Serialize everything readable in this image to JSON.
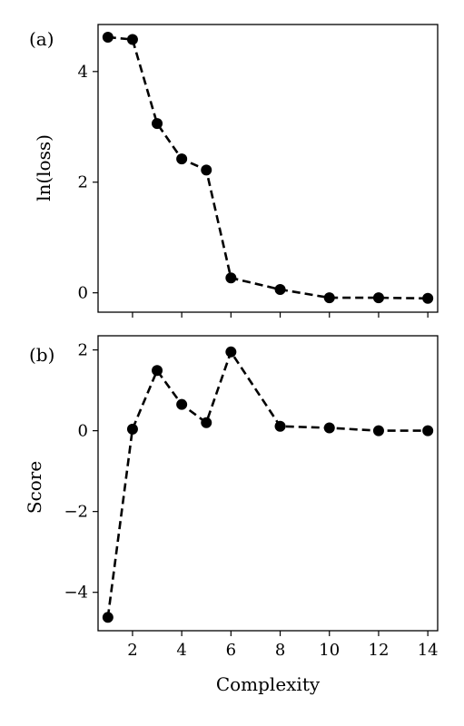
{
  "chart_data": [
    {
      "type": "line",
      "panel_label": "(a)",
      "xlabel": "",
      "ylabel": "ln(loss)",
      "xlim": [
        0.6,
        14.4
      ],
      "ylim": [
        -0.35,
        4.85
      ],
      "xticks": [
        2,
        4,
        6,
        8,
        10,
        12,
        14
      ],
      "show_xtick_labels": false,
      "yticks": [
        0,
        2,
        4
      ],
      "ytick_labels": [
        "0",
        "2",
        "4"
      ],
      "grid": false,
      "line_style": "dashed",
      "marker": "circle",
      "color": "#000000",
      "x": [
        1,
        2,
        3,
        4,
        5,
        6,
        8,
        10,
        12,
        14
      ],
      "y": [
        4.62,
        4.58,
        3.06,
        2.42,
        2.22,
        0.27,
        0.06,
        -0.09,
        -0.09,
        -0.1
      ]
    },
    {
      "type": "line",
      "panel_label": "(b)",
      "xlabel": "Complexity",
      "ylabel": "Score",
      "xlim": [
        0.6,
        14.4
      ],
      "ylim": [
        -4.95,
        2.35
      ],
      "xticks": [
        2,
        4,
        6,
        8,
        10,
        12,
        14
      ],
      "xtick_labels": [
        "2",
        "4",
        "6",
        "8",
        "10",
        "12",
        "14"
      ],
      "show_xtick_labels": true,
      "yticks": [
        -4,
        -2,
        0,
        2
      ],
      "ytick_labels": [
        "−4",
        "−2",
        "0",
        "2"
      ],
      "grid": false,
      "line_style": "dashed",
      "marker": "circle",
      "color": "#000000",
      "x": [
        1,
        2,
        3,
        4,
        5,
        6,
        8,
        10,
        12,
        14
      ],
      "y": [
        -4.62,
        0.04,
        1.49,
        0.65,
        0.2,
        1.95,
        0.11,
        0.07,
        0.0,
        0.0
      ]
    }
  ]
}
